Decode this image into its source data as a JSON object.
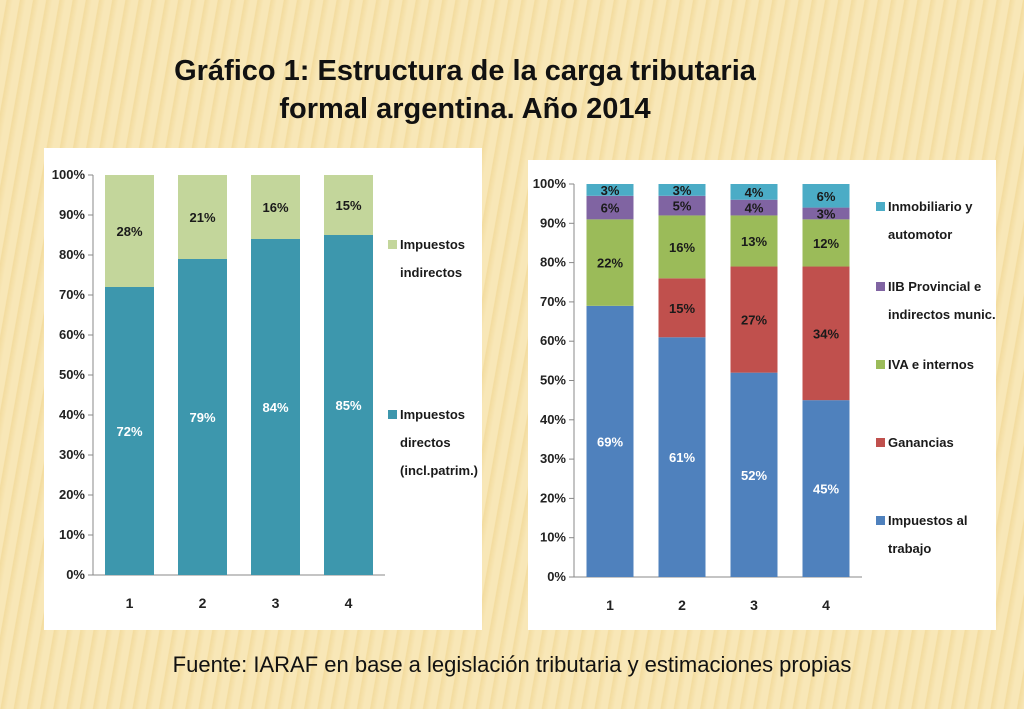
{
  "title": {
    "line1": "Gráfico 1: Estructura de la carga tributaria",
    "line2": "formal argentina. Año 2014"
  },
  "source": "Fuente: IARAF en base a legislación tributaria y estimaciones propias",
  "chart_data": [
    {
      "type": "bar",
      "stacked": true,
      "categories": [
        "1",
        "2",
        "3",
        "4"
      ],
      "ylim": [
        0,
        100
      ],
      "y_ticks": [
        "0%",
        "10%",
        "20%",
        "30%",
        "40%",
        "50%",
        "60%",
        "70%",
        "80%",
        "90%",
        "100%"
      ],
      "legend_position": "right",
      "series": [
        {
          "name": "Impuestos directos (incl.patrim.)",
          "legend_lines": [
            "Impuestos",
            "directos",
            "(incl.patrim.)"
          ],
          "color": "#3d97ad",
          "values": [
            72,
            79,
            84,
            85
          ],
          "labels": [
            "72%",
            "79%",
            "84%",
            "85%"
          ],
          "label_style": "white"
        },
        {
          "name": "Impuestos indirectos",
          "legend_lines": [
            "Impuestos",
            "indirectos"
          ],
          "color": "#c3d69b",
          "values": [
            28,
            21,
            16,
            15
          ],
          "labels": [
            "28%",
            "21%",
            "16%",
            "15%"
          ],
          "label_style": "dark"
        }
      ]
    },
    {
      "type": "bar",
      "stacked": true,
      "categories": [
        "1",
        "2",
        "3",
        "4"
      ],
      "ylim": [
        0,
        100
      ],
      "y_ticks": [
        "0%",
        "10%",
        "20%",
        "30%",
        "40%",
        "50%",
        "60%",
        "70%",
        "80%",
        "90%",
        "100%"
      ],
      "legend_position": "right",
      "series": [
        {
          "name": "Impuestos al trabajo",
          "legend_lines": [
            "Impuestos al",
            "trabajo"
          ],
          "color": "#4f81bd",
          "values": [
            69,
            61,
            52,
            45
          ],
          "labels": [
            "69%",
            "61%",
            "52%",
            "45%"
          ],
          "label_style": "white"
        },
        {
          "name": "Ganancias",
          "legend_lines": [
            "Ganancias"
          ],
          "color": "#c0504d",
          "values": [
            0,
            15,
            27,
            34
          ],
          "labels": [
            "",
            "15%",
            "27%",
            "34%"
          ],
          "label_style": "dark"
        },
        {
          "name": "IVA e internos",
          "legend_lines": [
            "IVA e internos"
          ],
          "color": "#9bbb59",
          "values": [
            22,
            16,
            13,
            12
          ],
          "labels": [
            "22%",
            "16%",
            "13%",
            "12%"
          ],
          "label_style": "dark"
        },
        {
          "name": "IIB Provincial e indirectos munic.",
          "legend_lines": [
            "IIB Provincial e",
            "indirectos munic."
          ],
          "color": "#8064a2",
          "values": [
            6,
            5,
            4,
            3
          ],
          "labels": [
            "6%",
            "5%",
            "4%",
            "3%"
          ],
          "label_style": "dark"
        },
        {
          "name": "Inmobiliario y automotor",
          "legend_lines": [
            "Inmobiliario y",
            "automotor"
          ],
          "color": "#4bacc6",
          "values": [
            3,
            3,
            4,
            6
          ],
          "labels": [
            "3%",
            "3%",
            "4%",
            "6%"
          ],
          "label_style": "dark"
        }
      ]
    }
  ]
}
